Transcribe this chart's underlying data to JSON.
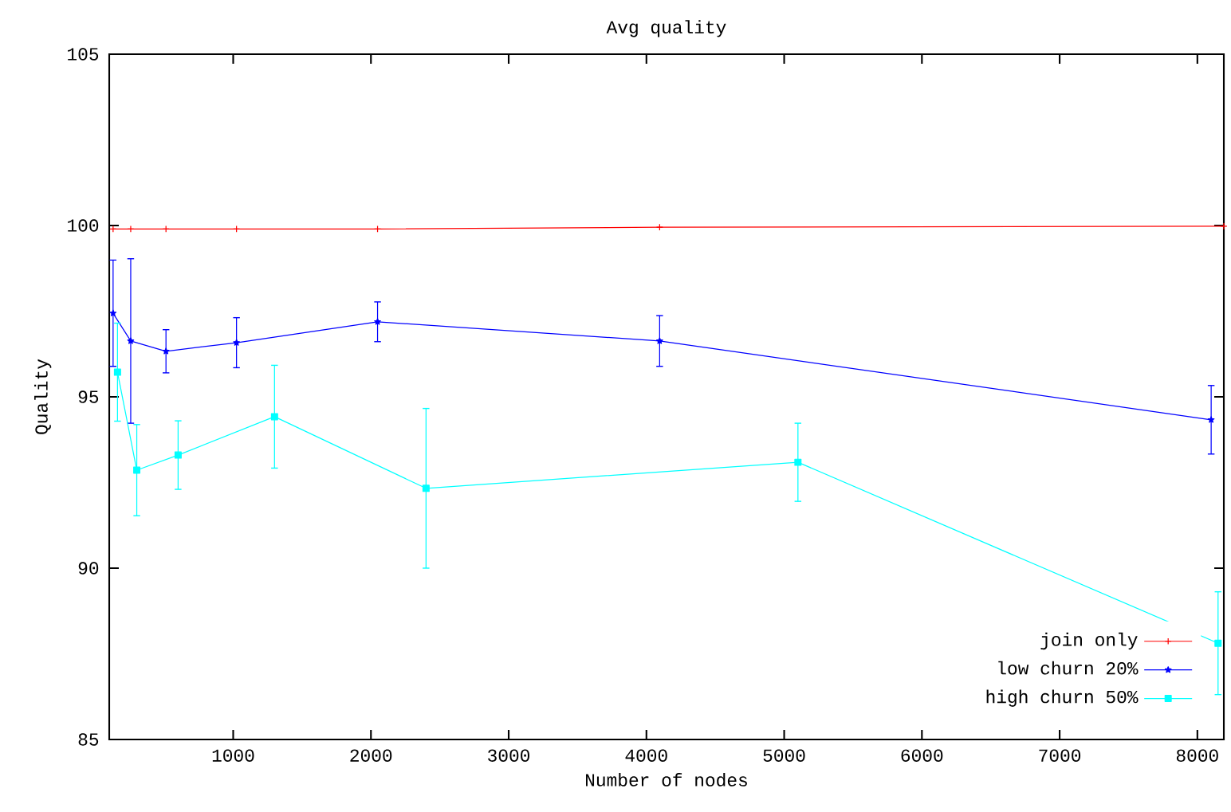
{
  "chart_data": {
    "type": "line",
    "title": "Avg quality",
    "xlabel": "Number of nodes",
    "ylabel": "Quality",
    "xlim": [
      100,
      8192
    ],
    "xticks": [
      1000,
      2000,
      3000,
      4000,
      5000,
      6000,
      7000,
      8000
    ],
    "ylim": [
      85,
      105
    ],
    "yticks": [
      85,
      90,
      95,
      100,
      105
    ],
    "grid": false,
    "legend": "bottom right",
    "series": [
      {
        "name": "join only",
        "color": "#ff0000",
        "marker": "cross",
        "x": [
          128,
          256,
          512,
          1024,
          2048,
          4096,
          8192
        ],
        "values": [
          99.9,
          99.9,
          99.9,
          99.9,
          99.9,
          99.95,
          99.98
        ]
      },
      {
        "name": "low churn 20%",
        "color": "#0000ff",
        "marker": "star",
        "x": [
          128,
          256,
          512,
          1024,
          2048,
          4096,
          8100
        ],
        "values": [
          97.44,
          96.63,
          96.33,
          96.58,
          97.19,
          96.63,
          94.33
        ],
        "errors": [
          1.55,
          2.4,
          0.63,
          0.73,
          0.58,
          0.74,
          1.0
        ]
      },
      {
        "name": "high churn 50%",
        "color": "#00ffff",
        "marker": "square",
        "x": [
          160,
          300,
          600,
          1300,
          2400,
          5100,
          8150
        ],
        "values": [
          95.72,
          92.86,
          93.3,
          94.42,
          92.33,
          93.09,
          87.81
        ],
        "errors": [
          1.43,
          1.33,
          1.0,
          1.5,
          2.33,
          1.14,
          1.5
        ]
      }
    ]
  }
}
